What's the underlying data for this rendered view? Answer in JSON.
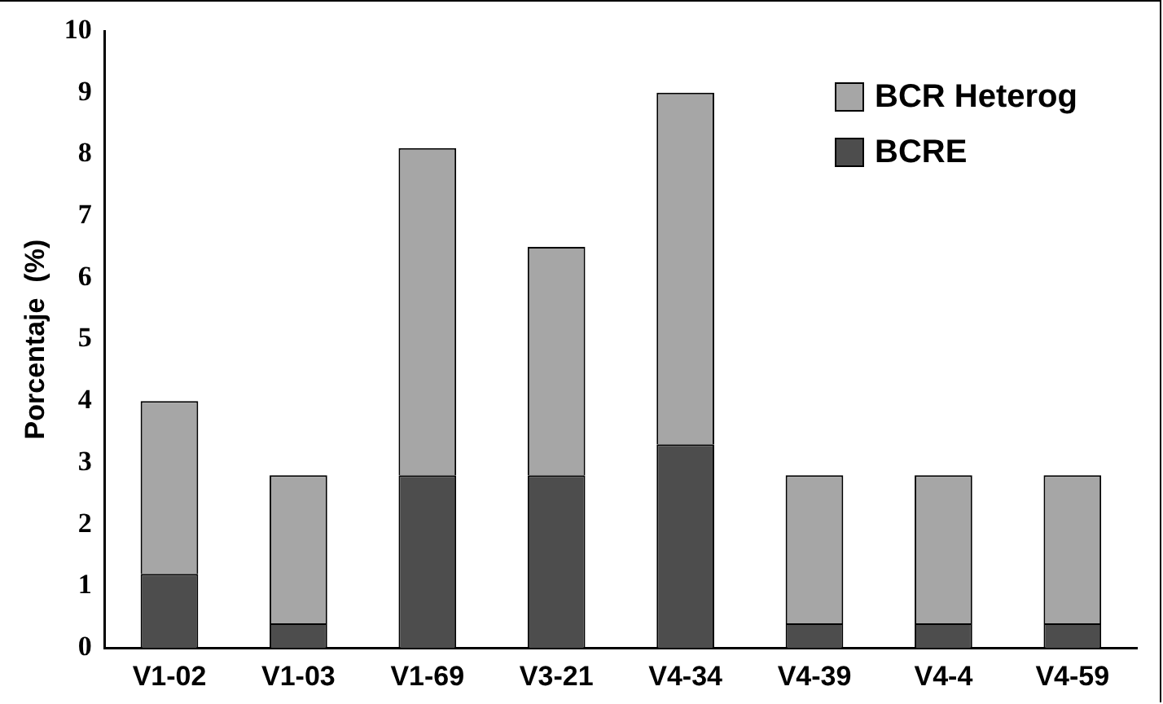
{
  "chart_data": {
    "type": "bar",
    "stacked": true,
    "ylabel": "Porcentaje  (%)",
    "categories": [
      "V1-02",
      "V1-03",
      "V1-69",
      "V3-21",
      "V4-34",
      "V4-39",
      "V4-4",
      "V4-59"
    ],
    "series": [
      {
        "name": "BCRE",
        "color": "#4d4d4d",
        "values": [
          1.2,
          0.4,
          2.8,
          2.8,
          3.3,
          0.4,
          0.4,
          0.4
        ]
      },
      {
        "name": "BCR Heterog",
        "color": "#a6a6a6",
        "values": [
          2.8,
          2.4,
          5.3,
          3.7,
          5.7,
          2.4,
          2.4,
          2.4
        ]
      }
    ],
    "ylim": [
      0,
      10
    ],
    "yticks": [
      0,
      1,
      2,
      3,
      4,
      5,
      6,
      7,
      8,
      9,
      10
    ],
    "grid": false,
    "legend": "top right"
  }
}
